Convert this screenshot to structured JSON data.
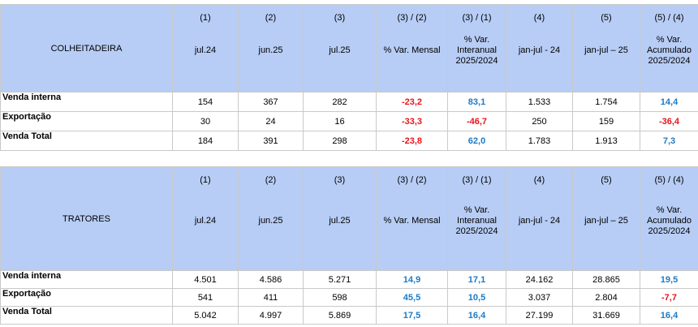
{
  "tables": [
    {
      "title": "COLHEITADEIRA",
      "columns": [
        {
          "number": "(1)",
          "label": "jul.24"
        },
        {
          "number": "(2)",
          "label": "jun.25"
        },
        {
          "number": "(3)",
          "label": "jul.25"
        },
        {
          "number": "(3) / (2)",
          "label": "% Var. Mensal"
        },
        {
          "number": "(3) / (1)",
          "label": "% Var.\nInteranual\n2025/2024"
        },
        {
          "number": "(4)",
          "label": "jan-jul - 24"
        },
        {
          "number": "(5)",
          "label": "jan-jul – 25"
        },
        {
          "number": "(5) / (4)",
          "label": "% Var.\nAcumulado\n2025/2024"
        }
      ],
      "rows": [
        {
          "label": "Venda interna",
          "cells": [
            "154",
            "367",
            "282",
            "-23,2",
            "83,1",
            "1.533",
            "1.754",
            "14,4"
          ]
        },
        {
          "label": "Exportação",
          "cells": [
            "30",
            "24",
            "16",
            "-33,3",
            "-46,7",
            "250",
            "159",
            "-36,4"
          ]
        },
        {
          "label": "Venda Total",
          "cells": [
            "184",
            "391",
            "298",
            "-23,8",
            "62,0",
            "1.783",
            "1.913",
            "7,3"
          ]
        }
      ]
    },
    {
      "title": "TRATORES",
      "columns": [
        {
          "number": "(1)",
          "label": "jul.24"
        },
        {
          "number": "(2)",
          "label": "jun.25"
        },
        {
          "number": "(3)",
          "label": "jul.25"
        },
        {
          "number": "(3) / (2)",
          "label": "% Var. Mensal"
        },
        {
          "number": "(3) / (1)",
          "label": "% Var.\nInteranual\n2025/2024"
        },
        {
          "number": "(4)",
          "label": "jan-jul - 24"
        },
        {
          "number": "(5)",
          "label": "jan-jul – 25"
        },
        {
          "number": "(5) / (4)",
          "label": "% Var.\nAcumulado\n2025/2024"
        }
      ],
      "rows": [
        {
          "label": "Venda interna",
          "cells": [
            "4.501",
            "4.586",
            "5.271",
            "14,9",
            "17,1",
            "24.162",
            "28.865",
            "19,5"
          ]
        },
        {
          "label": "Exportação",
          "cells": [
            "541",
            "411",
            "598",
            "45,5",
            "10,5",
            "3.037",
            "2.804",
            "-7,7"
          ]
        },
        {
          "label": "Venda Total",
          "cells": [
            "5.042",
            "4.997",
            "5.869",
            "17,5",
            "16,4",
            "27.199",
            "31.669",
            "16,4"
          ]
        }
      ]
    }
  ]
}
